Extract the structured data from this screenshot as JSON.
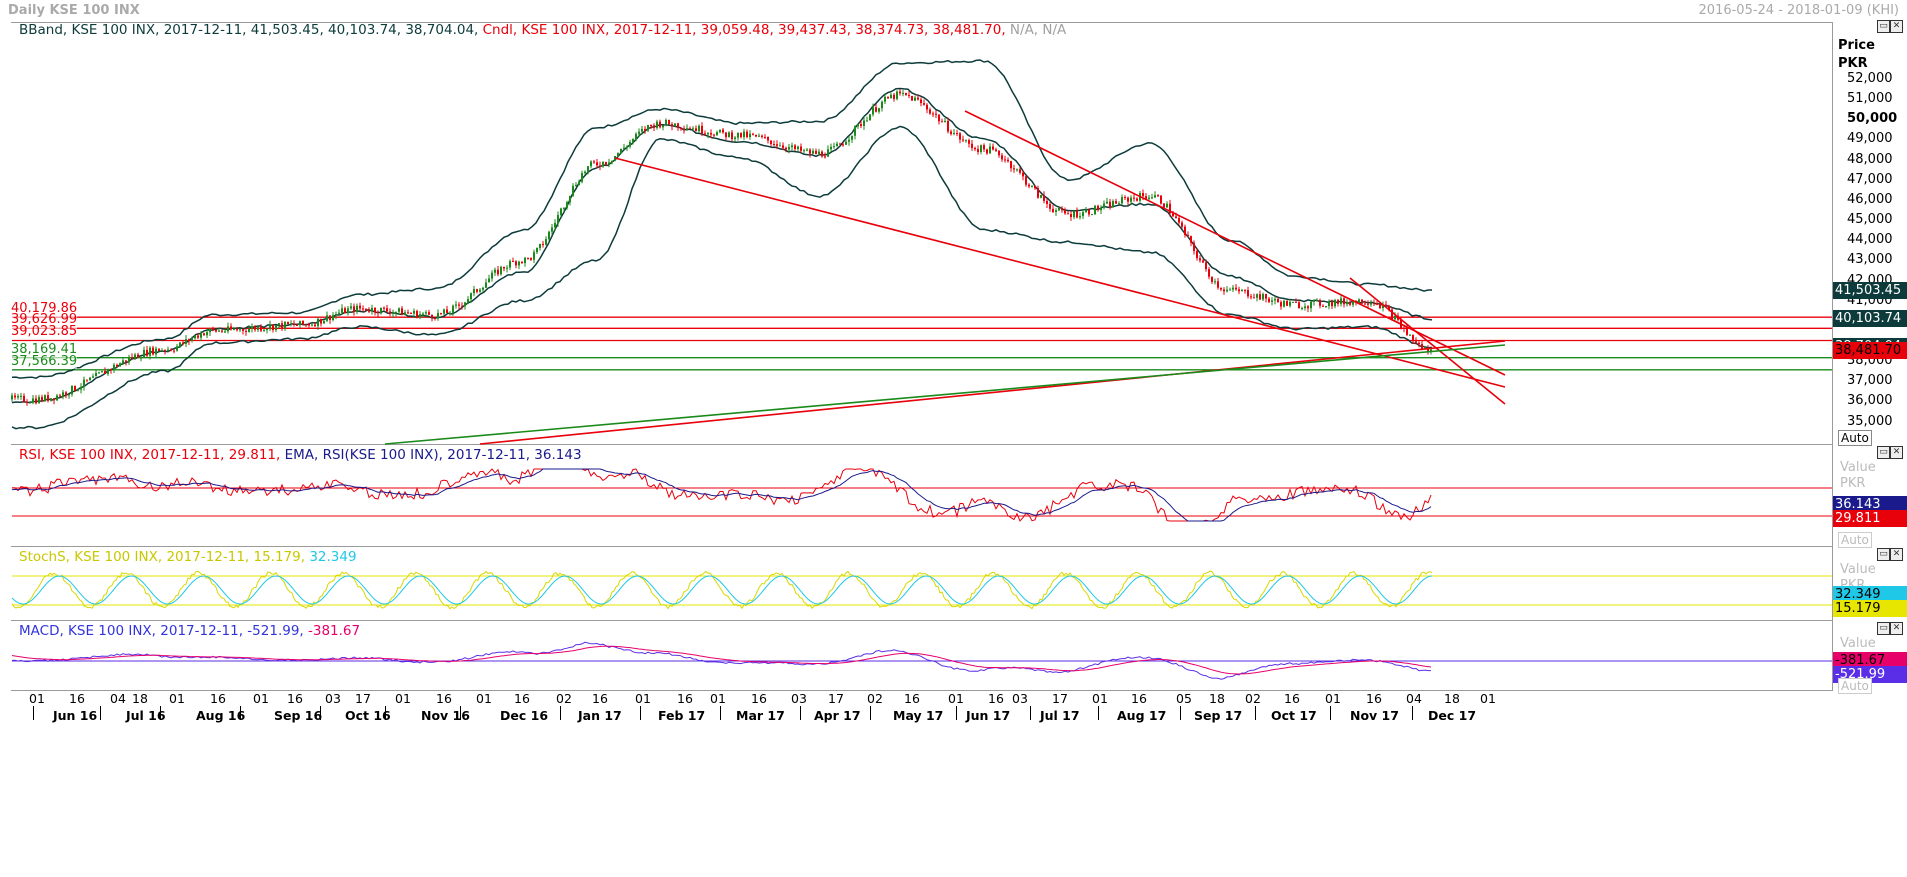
{
  "window": {
    "title": "Daily KSE 100 INX",
    "date_range": "2016-05-24 - 2018-01-09 (KHI)"
  },
  "legends": {
    "price": [
      {
        "text": "BBand, KSE 100 INX, 2017-12-11, 41,503.45, 40,103.74, 38,704.04, ",
        "color": "#0d3b3b"
      },
      {
        "text": "Cndl, KSE 100 INX, 2017-12-11, 39,059.48, 39,437.43, 38,374.73, 38,481.70, ",
        "color": "#e8000b"
      },
      {
        "text": "N/A, N/A",
        "color": "#a0a0a0"
      }
    ],
    "rsi": [
      {
        "text": "RSI, KSE 100 INX, 2017-12-11, 29.811, ",
        "color": "#e8000b"
      },
      {
        "text": "EMA, RSI(KSE 100 INX), 2017-12-11, 36.143",
        "color": "#1a1a8c"
      }
    ],
    "stoch": [
      {
        "text": "StochS, KSE 100 INX, 2017-12-11, 15.179, ",
        "color": "#c8c800"
      },
      {
        "text": "32.349",
        "color": "#1ec8e6"
      }
    ],
    "macd": [
      {
        "text": "MACD, KSE 100 INX, 2017-12-11, -521.99, ",
        "color": "#3333dd"
      },
      {
        "text": "-381.67",
        "color": "#e8006a"
      }
    ]
  },
  "axes": {
    "price_axis_title": "Price",
    "price_axis_unit": "PKR",
    "value_axis_title": "Value",
    "value_axis_unit": "PKR",
    "auto_label": "Auto"
  },
  "price_ticks": [
    "52,000",
    "51,000",
    "50,000",
    "49,000",
    "48,000",
    "47,000",
    "46,000",
    "45,000",
    "44,000",
    "43,000",
    "42,000",
    "41,000",
    "38,000",
    "37,000",
    "36,000",
    "35,000"
  ],
  "price_tick_values": [
    52000,
    51000,
    50000,
    49000,
    48000,
    47000,
    46000,
    45000,
    44000,
    43000,
    42000,
    41000,
    38000,
    37000,
    36000,
    35000
  ],
  "price_tags": [
    {
      "label": "41,503.45",
      "value": 41503.45,
      "bg": "#0d3b3b",
      "fg": "#ffffff"
    },
    {
      "label": "40,103.74",
      "value": 40103.74,
      "bg": "#0d3b3b",
      "fg": "#ffffff"
    },
    {
      "label": "38,704.04",
      "value": 38704.04,
      "bg": "#0d3b3b",
      "fg": "#ffffff"
    },
    {
      "label": "38,481.70",
      "value": 38481.7,
      "bg": "#e8000b",
      "fg": "#000000"
    }
  ],
  "horizontal_levels": [
    {
      "label": "40,179.86",
      "value": 40179.86,
      "color": "#e8000b"
    },
    {
      "label": "39,626.99",
      "value": 39626.99,
      "color": "#e8000b"
    },
    {
      "label": "39,023.85",
      "value": 39023.85,
      "color": "#e8000b"
    },
    {
      "label": "38,169.41",
      "value": 38169.41,
      "color": "#1a8a1a"
    },
    {
      "label": "37,566.39",
      "value": 37566.39,
      "color": "#1a8a1a"
    }
  ],
  "rsi_tags": [
    {
      "label": "36.143",
      "bg": "#1a1a8c",
      "fg": "#ffffff"
    },
    {
      "label": "29.811",
      "bg": "#e8000b",
      "fg": "#ffffff"
    }
  ],
  "stoch_tags": [
    {
      "label": "32.349",
      "bg": "#1ec8e6",
      "fg": "#000000"
    },
    {
      "label": "15.179",
      "bg": "#e6e600",
      "fg": "#000000"
    }
  ],
  "macd_tags": [
    {
      "label": "-381.67",
      "bg": "#e8006a",
      "fg": "#000000"
    },
    {
      "label": "-521.99",
      "bg": "#5a2ee6",
      "fg": "#ffffff"
    }
  ],
  "x_axis": {
    "day_ticks": [
      "01",
      "16",
      "04",
      "18",
      "01",
      "16",
      "01",
      "16",
      "03",
      "17",
      "01",
      "16",
      "01",
      "16",
      "02",
      "16",
      "01",
      "16",
      "01",
      "16",
      "03",
      "17",
      "02",
      "16",
      "01",
      "16",
      "03",
      "17",
      "01",
      "16",
      "05",
      "18",
      "02",
      "16",
      "01",
      "16",
      "04",
      "18",
      "01"
    ],
    "month_labels": [
      "Jun 16",
      "Jul 16",
      "Aug 16",
      "Sep 16",
      "Oct 16",
      "Nov 16",
      "Dec 16",
      "Jan 17",
      "Feb 17",
      "Mar 17",
      "Apr 17",
      "May 17",
      "Jun 17",
      "Jul 17",
      "Aug 17",
      "Sep 17",
      "Oct 17",
      "Nov 17",
      "Dec 17"
    ]
  },
  "chart_data": [
    {
      "type": "line",
      "title": "Daily KSE 100 INX",
      "series": [
        {
          "name": "Cndl, KSE 100 INX (close)",
          "x": [
            "2016-06-01",
            "2016-07-01",
            "2016-08-01",
            "2016-09-01",
            "2016-10-01",
            "2016-11-01",
            "2016-12-01",
            "2017-01-01",
            "2017-02-01",
            "2017-03-01",
            "2017-04-01",
            "2017-05-01",
            "2017-06-01",
            "2017-07-01",
            "2017-08-01",
            "2017-09-01",
            "2017-10-01",
            "2017-11-01",
            "2017-12-11"
          ],
          "values": [
            36100,
            38600,
            39500,
            39800,
            40600,
            40300,
            43000,
            47800,
            49800,
            49200,
            48300,
            51200,
            48500,
            45300,
            46200,
            41500,
            40800,
            41000,
            38481.7
          ]
        },
        {
          "name": "BBand upper",
          "values": [
            37200,
            39100,
            40300,
            40400,
            41300,
            41600,
            44500,
            49600,
            50500,
            49800,
            49900,
            52800,
            52900,
            47000,
            48800,
            44000,
            42200,
            41800,
            41503.45
          ]
        },
        {
          "name": "BBand middle",
          "values": [
            36000,
            38500,
            39600,
            39800,
            40500,
            40200,
            42400,
            47600,
            49700,
            48900,
            48200,
            51500,
            49000,
            45500,
            45800,
            42200,
            41000,
            40900,
            40103.74
          ]
        },
        {
          "name": "BBand lower",
          "values": [
            34700,
            37500,
            38900,
            39100,
            39700,
            39300,
            41000,
            43000,
            49000,
            48100,
            46200,
            49600,
            44500,
            43900,
            43400,
            40300,
            39600,
            39700,
            38704.04
          ]
        }
      ],
      "yunit": "PKR",
      "ylim": [
        34500,
        53500
      ]
    },
    {
      "type": "line",
      "series": [
        {
          "name": "RSI",
          "last": 29.811
        },
        {
          "name": "EMA, RSI",
          "last": 36.143
        }
      ]
    },
    {
      "type": "line",
      "series": [
        {
          "name": "StochS",
          "last": 15.179
        },
        {
          "name": "StochS signal",
          "last": 32.349
        }
      ]
    },
    {
      "type": "line",
      "series": [
        {
          "name": "MACD",
          "last": -521.99
        },
        {
          "name": "MACD signal",
          "last": -381.67
        }
      ]
    }
  ]
}
